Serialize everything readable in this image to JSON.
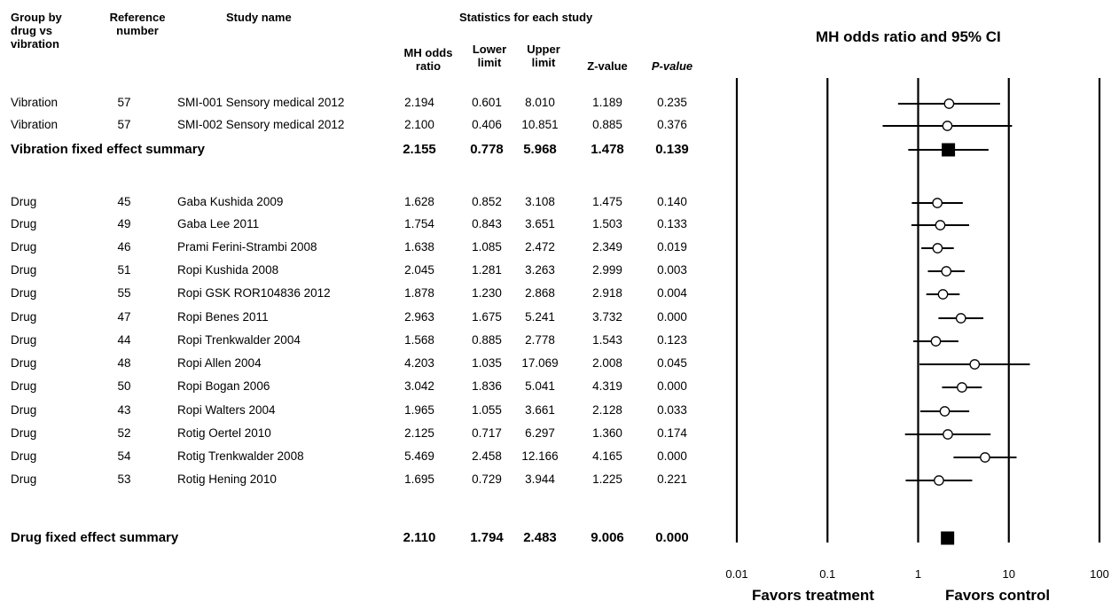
{
  "headers": {
    "group": [
      "Group by",
      "drug vs",
      "vibration"
    ],
    "ref": [
      "Reference",
      "number"
    ],
    "study": "Study name",
    "stats": "Statistics for each study",
    "mh": [
      "MH odds",
      "ratio"
    ],
    "lower": [
      "Lower",
      "limit"
    ],
    "upper": [
      "Upper",
      "limit"
    ],
    "z": "Z-value",
    "p": "P-value",
    "plot_title": "MH odds ratio and 95% CI"
  },
  "rows": [
    {
      "type": "study",
      "group": "Vibration",
      "ref": "57",
      "study": "SMI-001 Sensory medical 2012",
      "or": "2.194",
      "lo": "0.601",
      "hi": "8.010",
      "z": "1.189",
      "p": "0.235"
    },
    {
      "type": "study",
      "group": "Vibration",
      "ref": "57",
      "study": "SMI-002 Sensory medical 2012",
      "or": "2.100",
      "lo": "0.406",
      "hi": "10.851",
      "z": "0.885",
      "p": "0.376"
    },
    {
      "type": "summary",
      "label": "Vibration fixed effect summary",
      "or": "2.155",
      "lo": "0.778",
      "hi": "5.968",
      "z": "1.478",
      "p": "0.139"
    },
    {
      "type": "study",
      "group": "Drug",
      "ref": "45",
      "study": "Gaba Kushida 2009",
      "or": "1.628",
      "lo": "0.852",
      "hi": "3.108",
      "z": "1.475",
      "p": "0.140"
    },
    {
      "type": "study",
      "group": "Drug",
      "ref": "49",
      "study": "Gaba Lee 2011",
      "or": "1.754",
      "lo": "0.843",
      "hi": "3.651",
      "z": "1.503",
      "p": "0.133"
    },
    {
      "type": "study",
      "group": "Drug",
      "ref": "46",
      "study": "Prami Ferini-Strambi 2008",
      "or": "1.638",
      "lo": "1.085",
      "hi": "2.472",
      "z": "2.349",
      "p": "0.019"
    },
    {
      "type": "study",
      "group": "Drug",
      "ref": "51",
      "study": "Ropi Kushida 2008",
      "or": "2.045",
      "lo": "1.281",
      "hi": "3.263",
      "z": "2.999",
      "p": "0.003"
    },
    {
      "type": "study",
      "group": "Drug",
      "ref": "55",
      "study": "Ropi GSK ROR104836 2012",
      "or": "1.878",
      "lo": "1.230",
      "hi": "2.868",
      "z": "2.918",
      "p": "0.004"
    },
    {
      "type": "study",
      "group": "Drug",
      "ref": "47",
      "study": "Ropi Benes 2011",
      "or": "2.963",
      "lo": "1.675",
      "hi": "5.241",
      "z": "3.732",
      "p": "0.000"
    },
    {
      "type": "study",
      "group": "Drug",
      "ref": "44",
      "study": "Ropi Trenkwalder 2004",
      "or": "1.568",
      "lo": "0.885",
      "hi": "2.778",
      "z": "1.543",
      "p": "0.123"
    },
    {
      "type": "study",
      "group": "Drug",
      "ref": "48",
      "study": "Ropi Allen 2004",
      "or": "4.203",
      "lo": "1.035",
      "hi": "17.069",
      "z": "2.008",
      "p": "0.045"
    },
    {
      "type": "study",
      "group": "Drug",
      "ref": "50",
      "study": "Ropi Bogan 2006",
      "or": "3.042",
      "lo": "1.836",
      "hi": "5.041",
      "z": "4.319",
      "p": "0.000"
    },
    {
      "type": "study",
      "group": "Drug",
      "ref": "43",
      "study": "Ropi Walters 2004",
      "or": "1.965",
      "lo": "1.055",
      "hi": "3.661",
      "z": "2.128",
      "p": "0.033"
    },
    {
      "type": "study",
      "group": "Drug",
      "ref": "52",
      "study": "Rotig Oertel 2010",
      "or": "2.125",
      "lo": "0.717",
      "hi": "6.297",
      "z": "1.360",
      "p": "0.174"
    },
    {
      "type": "study",
      "group": "Drug",
      "ref": "54",
      "study": "Rotig Trenkwalder 2008",
      "or": "5.469",
      "lo": "2.458",
      "hi": "12.166",
      "z": "4.165",
      "p": "0.000"
    },
    {
      "type": "study",
      "group": "Drug",
      "ref": "53",
      "study": "Rotig Hening 2010",
      "or": "1.695",
      "lo": "0.729",
      "hi": "3.944",
      "z": "1.225",
      "p": "0.221"
    },
    {
      "type": "summary",
      "label": "Drug fixed effect summary",
      "or": "2.110",
      "lo": "1.794",
      "hi": "2.483",
      "z": "9.006",
      "p": "0.000"
    }
  ],
  "chart_data": {
    "type": "scatter",
    "title": "MH odds ratio and 95% CI",
    "scale": "log",
    "xlim": [
      0.01,
      100
    ],
    "ticks": [
      "0.01",
      "0.1",
      "1",
      "10",
      "100"
    ],
    "series": [
      {
        "estimates": [
          2.194,
          2.1,
          2.155,
          1.628,
          1.754,
          1.638,
          2.045,
          1.878,
          2.963,
          1.568,
          4.203,
          3.042,
          1.965,
          2.125,
          5.469,
          1.695,
          2.11
        ],
        "lower": [
          0.601,
          0.406,
          0.778,
          0.852,
          0.843,
          1.085,
          1.281,
          1.23,
          1.675,
          0.885,
          1.035,
          1.836,
          1.055,
          0.717,
          2.458,
          0.729,
          1.794
        ],
        "upper": [
          8.01,
          10.851,
          5.968,
          3.108,
          3.651,
          2.472,
          3.263,
          2.868,
          5.241,
          2.778,
          17.069,
          5.041,
          3.661,
          6.297,
          12.166,
          3.944,
          2.483
        ]
      }
    ],
    "favors_left": "Favors treatment",
    "favors_right": "Favors control"
  }
}
